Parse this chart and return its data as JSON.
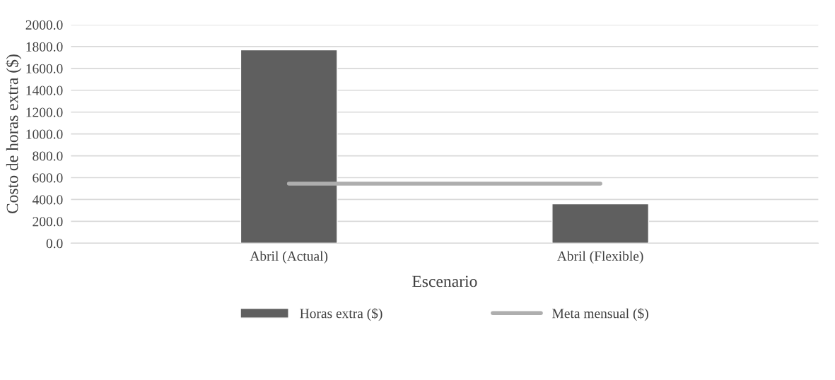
{
  "chart_data": {
    "type": "bar",
    "xlabel": "Escenario",
    "ylabel": "Costo de horas extra ($)",
    "categories": [
      "Abril (Actual)",
      "Abril (Flexible)"
    ],
    "series": [
      {
        "name": "Horas extra ($)",
        "color": "#5f5f5f",
        "values": [
          1770,
          360
        ]
      },
      {
        "name": "Meta mensual ($)",
        "type": "line",
        "color": "#aeaeae",
        "values": [
          545,
          545
        ]
      }
    ],
    "ylim": [
      0,
      2000
    ],
    "yticks": [
      {
        "value": 0,
        "label": "0.0"
      },
      {
        "value": 200,
        "label": "200.0"
      },
      {
        "value": 400,
        "label": "400.0"
      },
      {
        "value": 600,
        "label": "600.0"
      },
      {
        "value": 800,
        "label": "800.0"
      },
      {
        "value": 1000,
        "label": "1000.0"
      },
      {
        "value": 1200,
        "label": "1200.0"
      },
      {
        "value": 1400,
        "label": "1400.0"
      },
      {
        "value": 1600,
        "label": "1600.0"
      },
      {
        "value": 1800,
        "label": "1800.0"
      },
      {
        "value": 2000,
        "label": "2000.0"
      }
    ],
    "grid": "y",
    "legend": "bottom"
  }
}
